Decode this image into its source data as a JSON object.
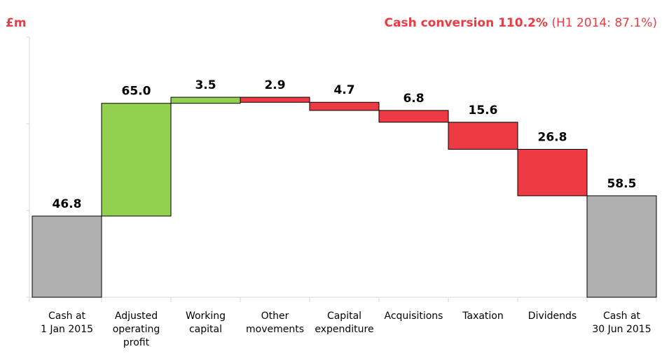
{
  "chart_data": {
    "type": "waterfall",
    "unit_label": "£m",
    "annotation": {
      "highlight": "Cash conversion 110.2%",
      "note": "(H1 2014: 87.1%)"
    },
    "categories": [
      [
        "Cash at",
        "1 Jan 2015"
      ],
      [
        "Adjusted",
        "operating",
        "profit"
      ],
      [
        "Working",
        "capital"
      ],
      [
        "Other",
        "movements"
      ],
      [
        "Capital",
        "expenditure"
      ],
      [
        "Acquisitions"
      ],
      [
        "Taxation"
      ],
      [
        "Dividends"
      ],
      [
        "Cash at",
        "30 Jun 2015"
      ]
    ],
    "values": [
      46.8,
      65,
      3.5,
      2.9,
      4.7,
      6.8,
      15.6,
      26.8,
      58.5
    ],
    "value_labels": [
      "46.8",
      "65.0",
      "3.5",
      "2.9",
      "4.7",
      "6.8",
      "15.6",
      "26.8",
      "58.5"
    ],
    "measures": [
      "total",
      "increase",
      "increase",
      "decrease",
      "decrease",
      "decrease",
      "decrease",
      "decrease",
      "total"
    ],
    "colors": {
      "total": "#b0b0b0",
      "increase": "#92d050",
      "decrease": "#ee3a43"
    },
    "ylim": [
      0,
      150
    ],
    "yticks": [
      0,
      50,
      100,
      150
    ]
  }
}
